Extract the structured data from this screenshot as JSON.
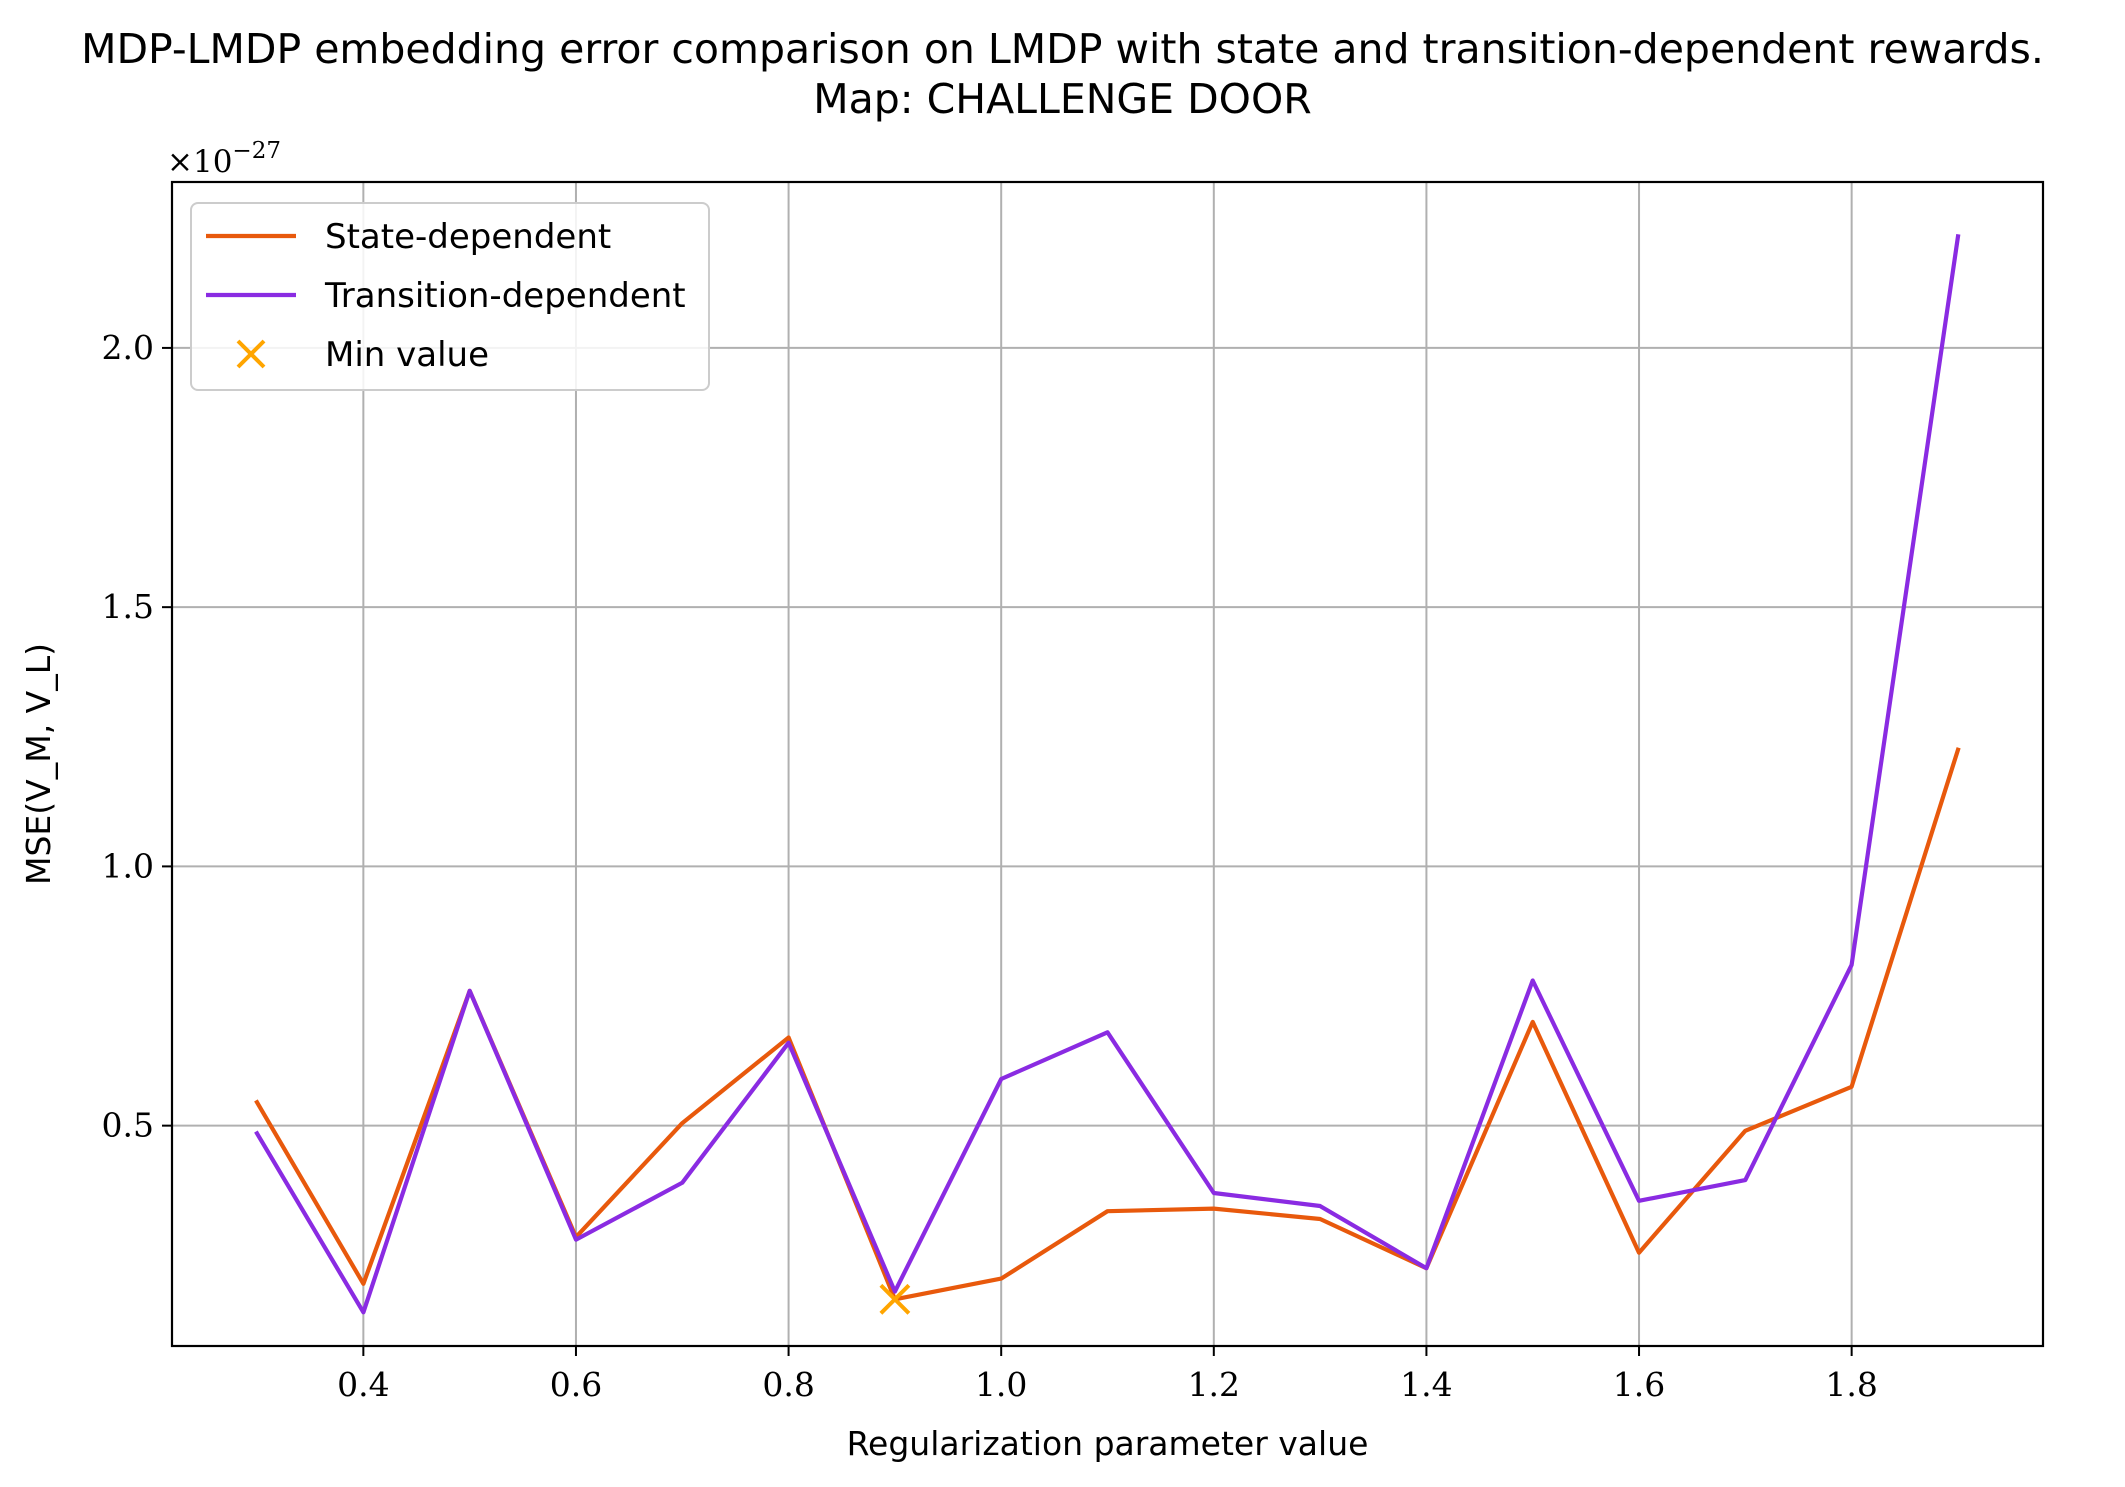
{
  "chart_data": {
    "type": "line",
    "title": "MDP-LMDP embedding error comparison on LMDP with state and transition-dependent rewards.",
    "subtitle": "Map: CHALLENGE DOOR",
    "xlabel": "Regularization parameter value",
    "ylabel": "MSE(V_M, V_L)",
    "y_offset_text": "×10^-27",
    "y_scale_exponent": -27,
    "xlim": [
      0.22,
      1.98
    ],
    "ylim": [
      0.075,
      2.32
    ],
    "xticks": [
      0.4,
      0.6,
      0.8,
      1.0,
      1.2,
      1.4,
      1.6,
      1.8
    ],
    "xtick_labels": [
      "0.4",
      "0.6",
      "0.8",
      "1.0",
      "1.2",
      "1.4",
      "1.6",
      "1.8"
    ],
    "yticks": [
      0.5,
      1.0,
      1.5,
      2.0
    ],
    "ytick_labels": [
      "0.5",
      "1.0",
      "1.5",
      "2.0"
    ],
    "grid": true,
    "legend_position": "top-left",
    "x": [
      0.3,
      0.4,
      0.5,
      0.6,
      0.7,
      0.8,
      0.9,
      1.0,
      1.1,
      1.2,
      1.3,
      1.4,
      1.5,
      1.6,
      1.7,
      1.8,
      1.9
    ],
    "series": [
      {
        "name": "State-dependent",
        "color": "#E8590C",
        "values": [
          0.545,
          0.195,
          0.76,
          0.285,
          0.505,
          0.67,
          0.165,
          0.205,
          0.335,
          0.34,
          0.32,
          0.225,
          0.7,
          0.255,
          0.49,
          0.575,
          1.225
        ]
      },
      {
        "name": "Transition-dependent",
        "color": "#8A2BE2",
        "values": [
          0.485,
          0.14,
          0.76,
          0.28,
          0.39,
          0.66,
          0.18,
          0.59,
          0.68,
          0.37,
          0.345,
          0.225,
          0.78,
          0.355,
          0.395,
          0.81,
          2.215
        ]
      }
    ],
    "min_marker": {
      "name": "Min value",
      "x": 0.9,
      "y": 0.165,
      "color": "#FFA500"
    }
  }
}
